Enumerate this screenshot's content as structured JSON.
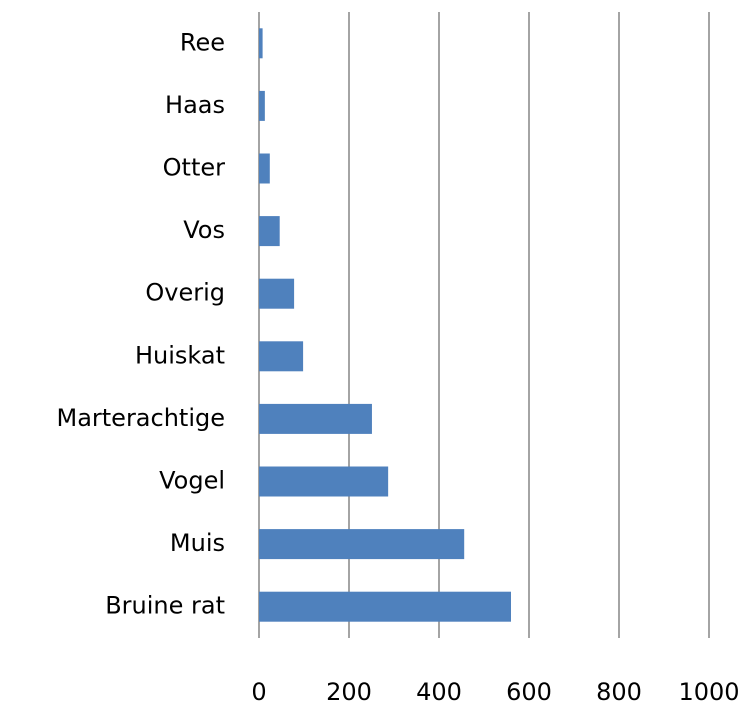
{
  "chart_data": {
    "type": "hbar",
    "categories": [
      "Ree",
      "Haas",
      "Otter",
      "Vos",
      "Overig",
      "Huiskat",
      "Marterachtige",
      "Vogel",
      "Muis",
      "Bruine rat"
    ],
    "values": [
      8,
      13,
      24,
      46,
      78,
      98,
      251,
      287,
      456,
      560
    ],
    "color": "#4f81bd",
    "xlim": [
      0,
      1000
    ],
    "xticks": [
      0,
      200,
      400,
      600,
      800,
      1000
    ],
    "grid": true
  }
}
